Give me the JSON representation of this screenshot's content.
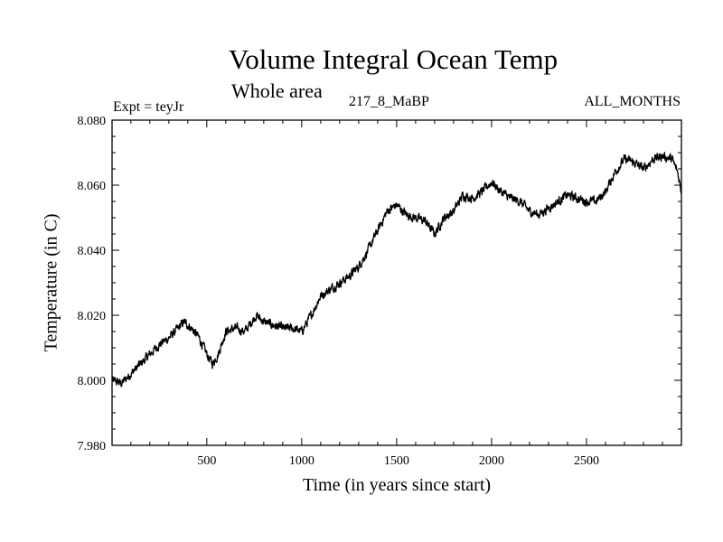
{
  "chart_data": {
    "type": "line",
    "title": "Volume Integral Ocean Temp",
    "subtitle": "Whole area",
    "experiment": "Expt = teyJr",
    "run": "217_8_MaBP",
    "months": "ALL_MONTHS",
    "xlabel": "Time (in years since start)",
    "ylabel": "Temperature (in C)",
    "xlim": [
      1,
      3000
    ],
    "ylim": [
      7.98,
      8.08
    ],
    "x_ticks": [
      500,
      1000,
      1500,
      2000,
      2500
    ],
    "x_tick_labels": [
      "500",
      "1000",
      "1500",
      "2000",
      "2500"
    ],
    "y_ticks": [
      7.98,
      8.0,
      8.02,
      8.04,
      8.06,
      8.08
    ],
    "y_tick_labels": [
      "7.980",
      "8.000",
      "8.020",
      "8.040",
      "8.060",
      "8.080"
    ],
    "series": [
      {
        "name": "Volume Integral Ocean Temp",
        "x": [
          1,
          50,
          100,
          150,
          200,
          250,
          300,
          350,
          380,
          420,
          460,
          500,
          530,
          560,
          600,
          650,
          700,
          760,
          800,
          850,
          900,
          950,
          1000,
          1050,
          1100,
          1150,
          1200,
          1250,
          1300,
          1350,
          1400,
          1450,
          1500,
          1550,
          1600,
          1650,
          1700,
          1750,
          1800,
          1850,
          1900,
          1950,
          2000,
          2050,
          2100,
          2150,
          2200,
          2250,
          2300,
          2350,
          2400,
          2450,
          2500,
          2550,
          2600,
          2650,
          2700,
          2750,
          2800,
          2850,
          2900,
          2950,
          2980,
          3000
        ],
        "y": [
          8.0,
          7.999,
          8.002,
          8.005,
          8.008,
          8.011,
          8.013,
          8.016,
          8.018,
          8.016,
          8.013,
          8.008,
          8.005,
          8.008,
          8.015,
          8.016,
          8.015,
          8.02,
          8.018,
          8.017,
          8.016,
          8.016,
          8.015,
          8.02,
          8.026,
          8.028,
          8.03,
          8.032,
          8.035,
          8.04,
          8.046,
          8.052,
          8.054,
          8.051,
          8.05,
          8.049,
          8.045,
          8.05,
          8.052,
          8.057,
          8.056,
          8.058,
          8.061,
          8.058,
          8.056,
          8.055,
          8.052,
          8.051,
          8.053,
          8.055,
          8.057,
          8.056,
          8.055,
          8.055,
          8.058,
          8.064,
          8.068,
          8.067,
          8.065,
          8.068,
          8.069,
          8.068,
          8.064,
          8.058
        ]
      }
    ]
  }
}
